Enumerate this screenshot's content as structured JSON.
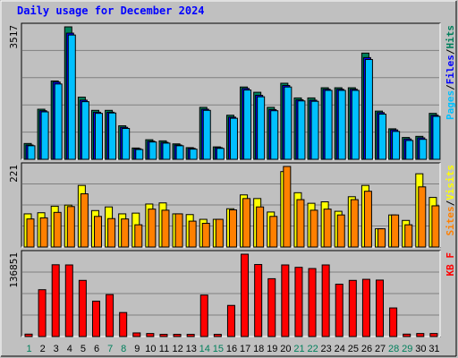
{
  "title": "Daily usage for December 2024",
  "colors": {
    "background": "#c0c0c0",
    "frame": "#ffffff",
    "panel_bg": "#c0c0c0",
    "grid": "#808080",
    "title": "#0000ff",
    "hits": "#00805c",
    "files": "#0000ff",
    "pages": "#00c0ff",
    "visits": "#ffff00",
    "sites": "#ff8000",
    "kbytes": "#ff0000",
    "weekday": "#000000",
    "weekend": "#00805c"
  },
  "chart_data": [
    {
      "type": "bar",
      "panel": "hits-files-pages",
      "y_max_label": "3517",
      "ylim": [
        0,
        3517
      ],
      "grid": true,
      "legend": [
        {
          "name": "Pages",
          "color": "#00c0ff"
        },
        {
          "name": "Files",
          "color": "#0000ff"
        },
        {
          "name": "Hits",
          "color": "#00805c"
        }
      ],
      "categories": [
        "1",
        "2",
        "3",
        "4",
        "5",
        "6",
        "7",
        "8",
        "9",
        "10",
        "11",
        "12",
        "13",
        "14",
        "15",
        "16",
        "17",
        "18",
        "19",
        "20",
        "21",
        "22",
        "23",
        "24",
        "25",
        "26",
        "27",
        "28",
        "29",
        "30",
        "31"
      ],
      "weekend_days": [
        "1",
        "7",
        "8",
        "14",
        "15",
        "21",
        "22",
        "28",
        "29"
      ],
      "series": [
        {
          "name": "Hits",
          "values": [
            420,
            1330,
            2080,
            3517,
            1650,
            1300,
            1300,
            890,
            300,
            520,
            490,
            410,
            310,
            1380,
            330,
            1170,
            1920,
            1780,
            1380,
            2020,
            1630,
            1630,
            1900,
            1900,
            1900,
            2820,
            1280,
            810,
            580,
            610,
            1220
          ]
        },
        {
          "name": "Files",
          "values": [
            380,
            1290,
            2050,
            3350,
            1570,
            1250,
            1250,
            850,
            280,
            480,
            450,
            380,
            290,
            1330,
            310,
            1120,
            1880,
            1700,
            1320,
            1960,
            1580,
            1570,
            1860,
            1860,
            1860,
            2700,
            1240,
            780,
            540,
            570,
            1170
          ]
        },
        {
          "name": "Pages",
          "values": [
            360,
            1260,
            2000,
            3300,
            1530,
            1220,
            1230,
            820,
            260,
            460,
            430,
            360,
            270,
            1300,
            290,
            1090,
            1840,
            1660,
            1290,
            1920,
            1550,
            1540,
            1830,
            1830,
            1830,
            2650,
            1200,
            740,
            500,
            530,
            1140
          ]
        }
      ]
    },
    {
      "type": "bar",
      "panel": "visits-sites",
      "y_max_label": "221",
      "ylim": [
        0,
        221
      ],
      "grid": true,
      "legend": [
        {
          "name": "Sites",
          "color": "#ff8000"
        },
        {
          "name": "Visits",
          "color": "#ffff00"
        }
      ],
      "categories": [
        "1",
        "2",
        "3",
        "4",
        "5",
        "6",
        "7",
        "8",
        "9",
        "10",
        "11",
        "12",
        "13",
        "14",
        "15",
        "16",
        "17",
        "18",
        "19",
        "20",
        "21",
        "22",
        "23",
        "24",
        "25",
        "26",
        "27",
        "28",
        "29",
        "30",
        "31"
      ],
      "series": [
        {
          "name": "Visits",
          "values": [
            91,
            94,
            112,
            115,
            169,
            100,
            110,
            91,
            93,
            118,
            121,
            91,
            89,
            76,
            76,
            105,
            143,
            133,
            96,
            207,
            149,
            120,
            124,
            98,
            138,
            169,
            50,
            88,
            73,
            201,
            136
          ]
        },
        {
          "name": "Sites",
          "values": [
            77,
            80,
            95,
            111,
            146,
            84,
            78,
            77,
            61,
            104,
            101,
            91,
            71,
            65,
            76,
            102,
            133,
            110,
            84,
            221,
            130,
            101,
            104,
            88,
            130,
            153,
            50,
            88,
            61,
            165,
            113
          ]
        }
      ]
    },
    {
      "type": "bar",
      "panel": "kbytes",
      "y_max_label": "136851",
      "ylim": [
        0,
        136851
      ],
      "grid": true,
      "legend": [
        {
          "name": "KB F",
          "color": "#ff0000"
        }
      ],
      "categories": [
        "1",
        "2",
        "3",
        "4",
        "5",
        "6",
        "7",
        "8",
        "9",
        "10",
        "11",
        "12",
        "13",
        "14",
        "15",
        "16",
        "17",
        "18",
        "19",
        "20",
        "21",
        "22",
        "23",
        "24",
        "25",
        "26",
        "27",
        "28",
        "29",
        "30",
        "31"
      ],
      "series": [
        {
          "name": "KB F",
          "values": [
            4000,
            77800,
            119300,
            119000,
            93300,
            58800,
            69700,
            39900,
            6000,
            5000,
            3600,
            3600,
            3600,
            68900,
            3600,
            51700,
            136851,
            119700,
            96100,
            119000,
            115000,
            113000,
            119000,
            87000,
            93300,
            95100,
            93800,
            47500,
            4000,
            5000,
            5000
          ]
        }
      ]
    }
  ]
}
